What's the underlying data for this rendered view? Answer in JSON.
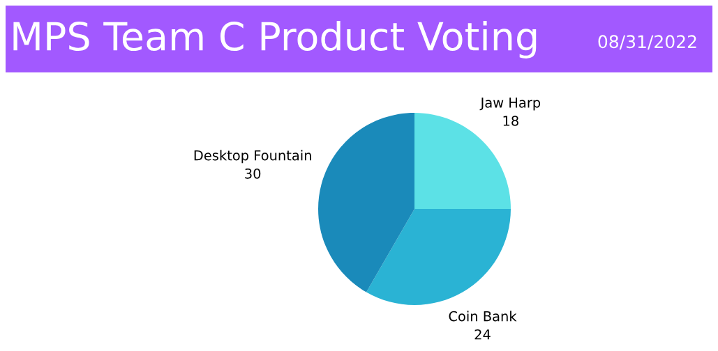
{
  "chart_data": {
    "type": "pie",
    "title": "MPS Team C Product Voting",
    "annotations": [
      "08/31/2022"
    ],
    "categories": [
      "Jaw Harp",
      "Coin Bank",
      "Desktop Fountain"
    ],
    "values": [
      18,
      24,
      30
    ],
    "colors": [
      "#5ce1e6",
      "#2ab3d4",
      "#1a8aba"
    ],
    "data_labels": true
  }
}
